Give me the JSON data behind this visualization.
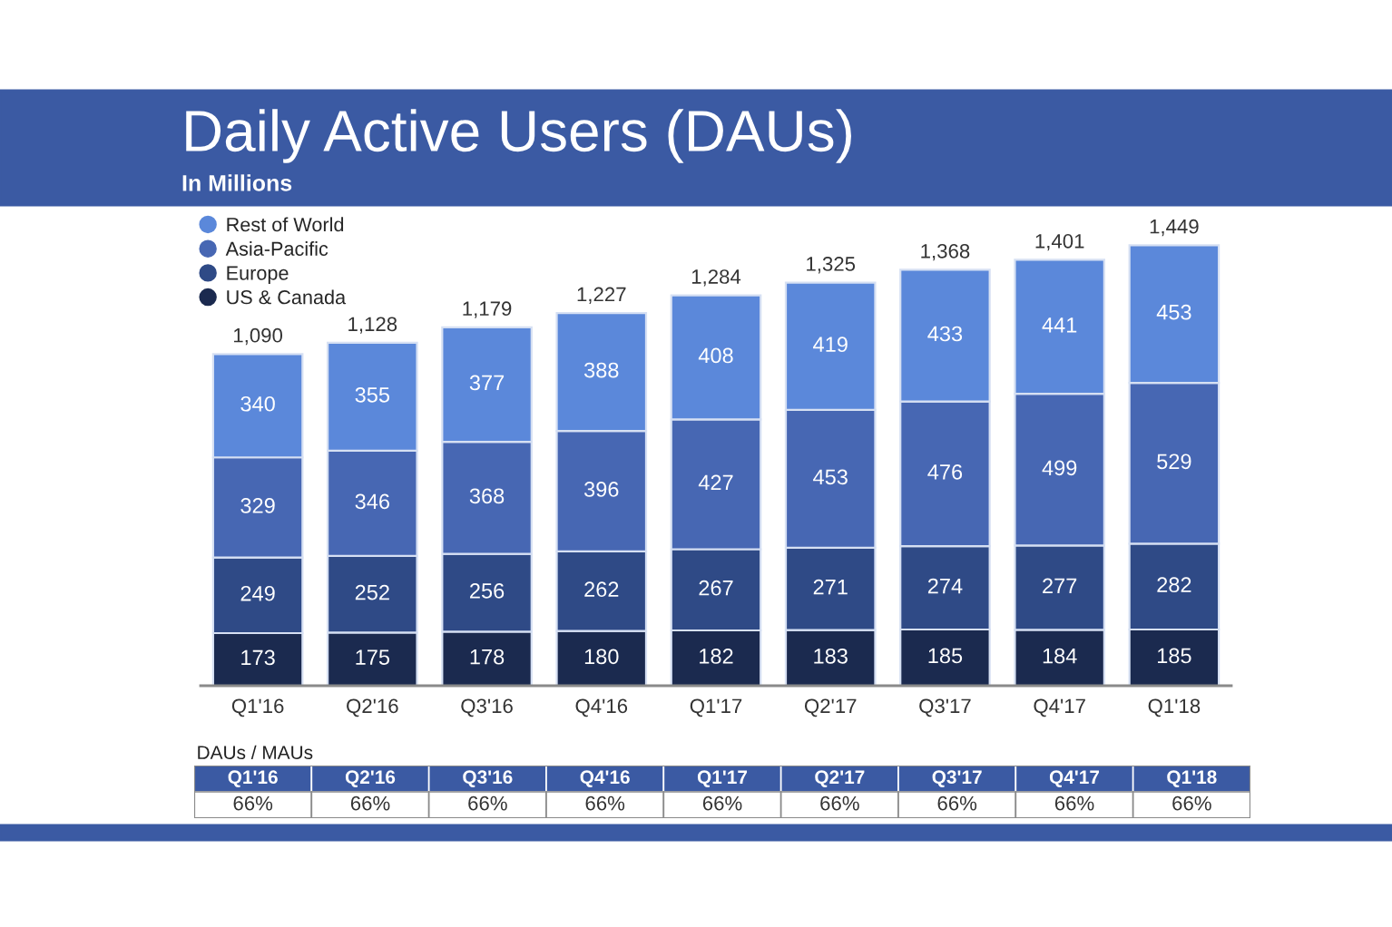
{
  "chart_data": [
    {
      "type": "bar",
      "title": "Daily Active Users (DAUs)",
      "subtitle": "In Millions",
      "categories": [
        "Q1'16",
        "Q2'16",
        "Q3'16",
        "Q4'16",
        "Q1'17",
        "Q2'17",
        "Q3'17",
        "Q4'17",
        "Q1'18"
      ],
      "stacked": true,
      "series": [
        {
          "name": "US & Canada",
          "color": "#1b2a4f",
          "values": [
            173,
            175,
            178,
            180,
            182,
            183,
            185,
            184,
            185
          ]
        },
        {
          "name": "Europe",
          "color": "#2f4a86",
          "values": [
            249,
            252,
            256,
            262,
            267,
            271,
            274,
            277,
            282
          ]
        },
        {
          "name": "Asia-Pacific",
          "color": "#4767b3",
          "values": [
            329,
            346,
            368,
            396,
            427,
            453,
            476,
            499,
            529
          ]
        },
        {
          "name": "Rest of World",
          "color": "#5b88da",
          "values": [
            340,
            355,
            377,
            388,
            408,
            419,
            433,
            441,
            453
          ]
        }
      ],
      "data_labels": true,
      "totals": [
        "1,090",
        "1,128",
        "1,179",
        "1,227",
        "1,284",
        "1,325",
        "1,368",
        "1,401",
        "1,449"
      ],
      "legend": "top left",
      "tick_labels": "x"
    },
    {
      "type": "other",
      "title": "DAUs / MAUs",
      "categories": [
        "Q1'16",
        "Q2'16",
        "Q3'16",
        "Q4'16",
        "Q1'17",
        "Q2'17",
        "Q3'17",
        "Q4'17",
        "Q1'18"
      ],
      "value_labels": [
        "66%",
        "66%",
        "66%",
        "66%",
        "66%",
        "66%",
        "66%",
        "66%",
        "66%"
      ]
    }
  ]
}
